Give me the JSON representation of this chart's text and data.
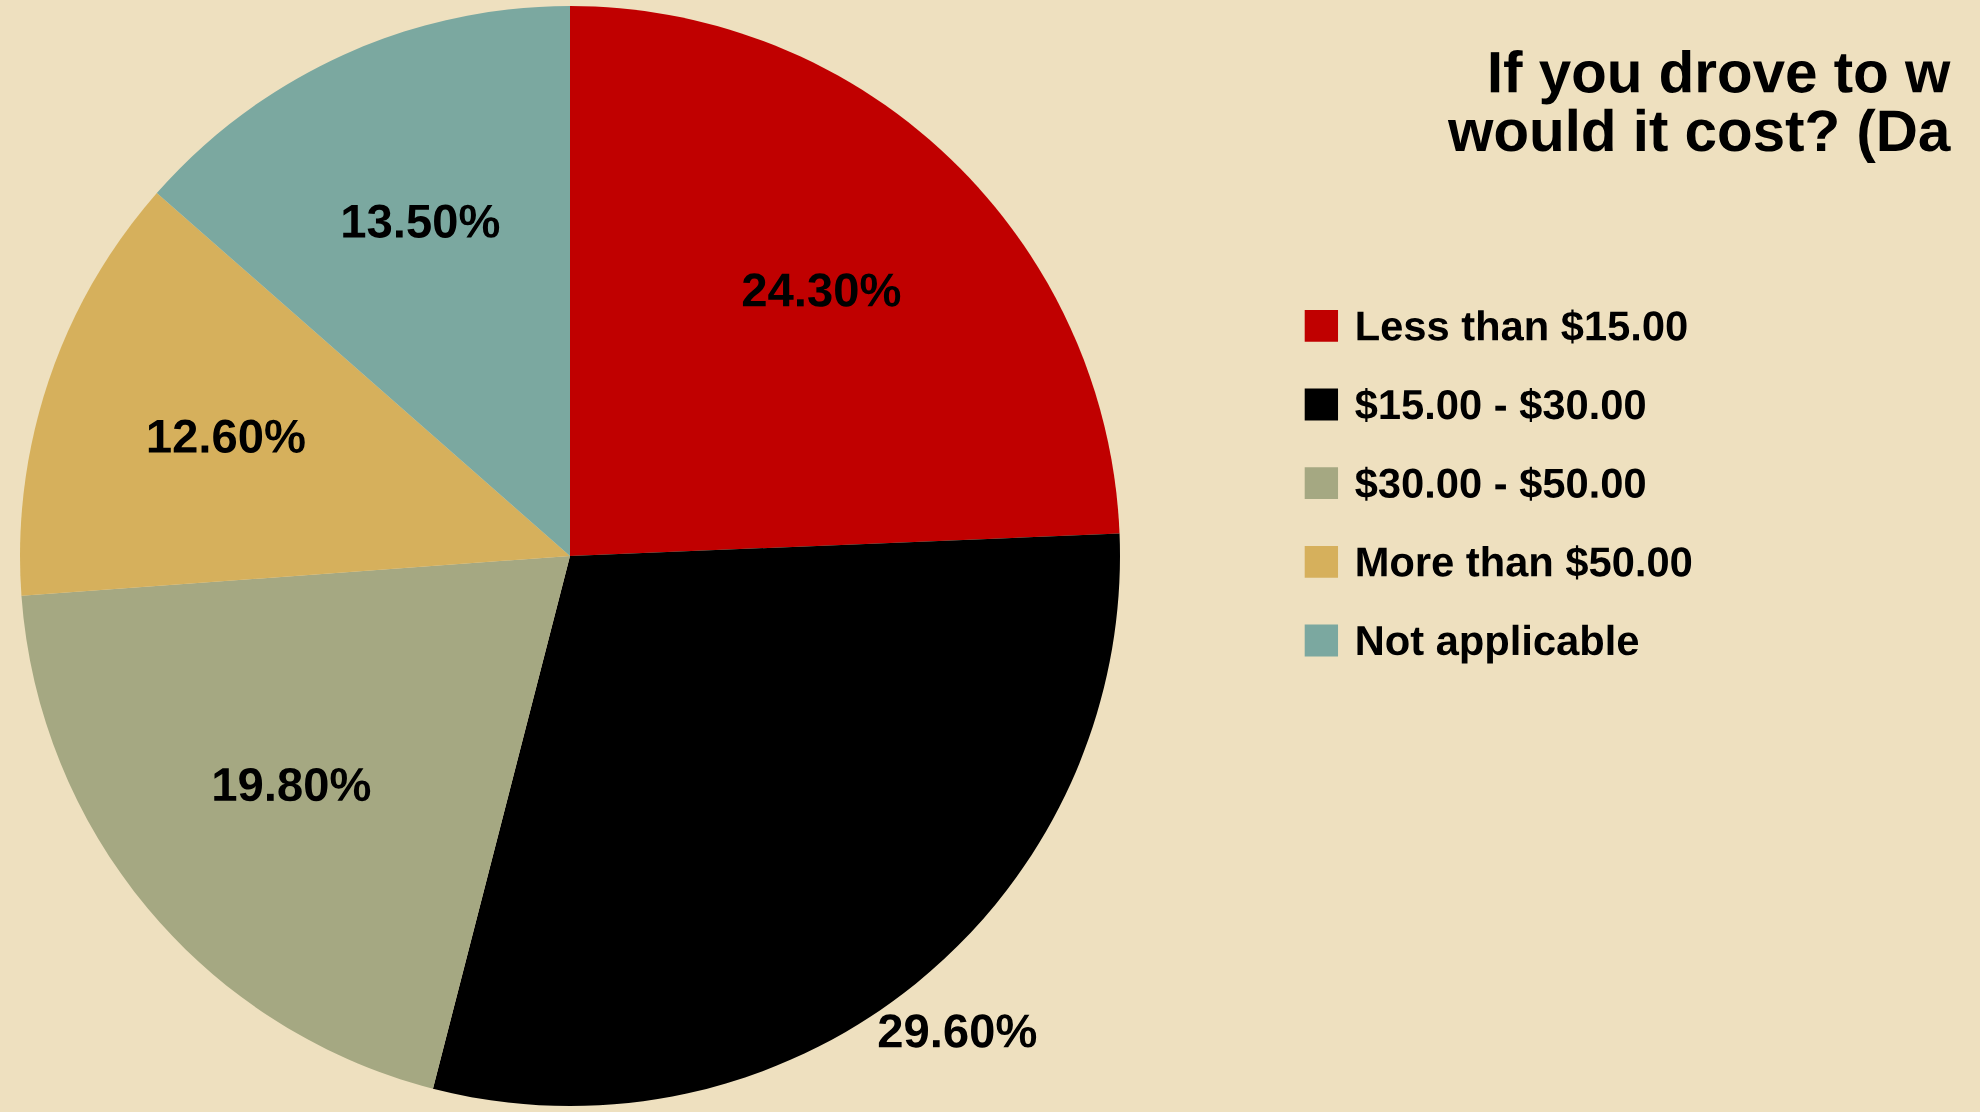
{
  "chart_data": {
    "type": "pie",
    "title": "If you drove to w\nwould it cost? (Da",
    "categories": [
      "Less than $15.00",
      "$15.00 - $30.00",
      "$30.00 - $50.00",
      "More than $50.00",
      "Not applicable"
    ],
    "values": [
      24.3,
      29.6,
      19.8,
      12.6,
      13.5
    ],
    "colors": [
      "#c00000",
      "#000000",
      "#a5a882",
      "#d6b05c",
      "#7ba8a0"
    ],
    "value_labels": [
      "24.30%",
      "29.60%",
      "19.80%",
      "12.60%",
      "13.50%"
    ],
    "legend": "right"
  }
}
